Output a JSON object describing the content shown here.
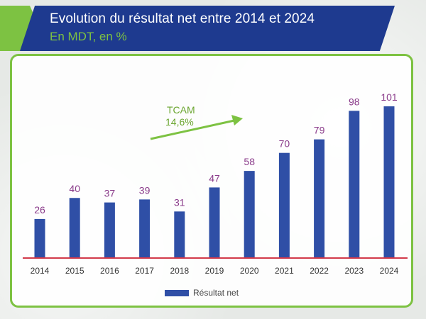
{
  "header": {
    "title": "Evolution du résultat net entre 2014 et 2024",
    "subtitle": "En MDT, en %"
  },
  "colors": {
    "header_blue": "#1e3a8f",
    "accent_green": "#7dc242",
    "bar": "#2f4fa6",
    "value_label": "#8a3b8a",
    "baseline": "#d23a4a"
  },
  "annotation": {
    "label": "TCAM",
    "value": "14,6%",
    "arrow_icon": "arrow-up-right-icon"
  },
  "chart_data": {
    "type": "bar",
    "title": "Evolution du résultat net entre 2014 et 2024",
    "subtitle": "En MDT, en %",
    "categories": [
      "2014",
      "2015",
      "2016",
      "2017",
      "2018",
      "2019",
      "2020",
      "2021",
      "2022",
      "2023",
      "2024"
    ],
    "series": [
      {
        "name": "Résultat net",
        "values": [
          26,
          40,
          37,
          39,
          31,
          47,
          58,
          70,
          79,
          98,
          101
        ]
      }
    ],
    "xlabel": "",
    "ylabel": "",
    "ylim": [
      0,
      101
    ],
    "grid": false,
    "legend": "bottom-center",
    "data_labels": true
  }
}
